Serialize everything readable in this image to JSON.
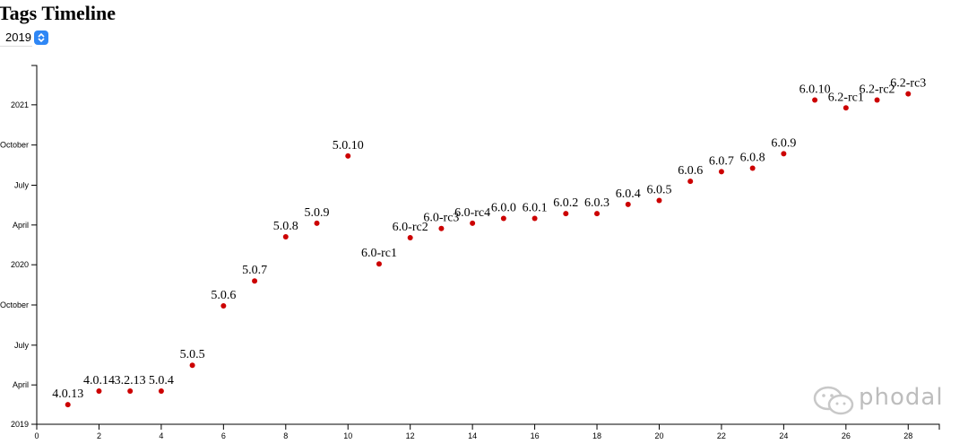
{
  "header": {
    "title": "Tags Timeline"
  },
  "year_select": {
    "value": "2019"
  },
  "watermark": {
    "text": "phodal"
  },
  "chart_data": {
    "type": "scatter",
    "title": "Tags Timeline",
    "xlim": [
      0,
      29
    ],
    "x_ticks": [
      0,
      2,
      4,
      6,
      8,
      10,
      12,
      14,
      16,
      18,
      20,
      22,
      24,
      26,
      28
    ],
    "ylim": [
      "2019-01-01",
      "2021-04-01"
    ],
    "y_ticks": [
      {
        "date": "2019-01-01",
        "label": "2019"
      },
      {
        "date": "2019-04-01",
        "label": "April"
      },
      {
        "date": "2019-07-01",
        "label": "July"
      },
      {
        "date": "2019-10-01",
        "label": "October"
      },
      {
        "date": "2020-01-01",
        "label": "2020"
      },
      {
        "date": "2020-04-01",
        "label": "April"
      },
      {
        "date": "2020-07-01",
        "label": "July"
      },
      {
        "date": "2020-10-01",
        "label": "October"
      },
      {
        "date": "2021-01-01",
        "label": "2021"
      }
    ],
    "grid": false,
    "point_color": "#cc0000",
    "points": [
      {
        "x": 1,
        "date": "2019-02-15",
        "label": "4.0.13"
      },
      {
        "x": 2,
        "date": "2019-03-18",
        "label": "4.0.14"
      },
      {
        "x": 3,
        "date": "2019-03-18",
        "label": "3.2.13"
      },
      {
        "x": 4,
        "date": "2019-03-18",
        "label": "5.0.4"
      },
      {
        "x": 5,
        "date": "2019-05-16",
        "label": "5.0.5"
      },
      {
        "x": 6,
        "date": "2019-09-29",
        "label": "5.0.6"
      },
      {
        "x": 7,
        "date": "2019-11-25",
        "label": "5.0.7"
      },
      {
        "x": 8,
        "date": "2020-03-05",
        "label": "5.0.8"
      },
      {
        "x": 9,
        "date": "2020-04-05",
        "label": "5.0.9"
      },
      {
        "x": 10,
        "date": "2020-09-06",
        "label": "5.0.10"
      },
      {
        "x": 11,
        "date": "2020-01-03",
        "label": "6.0-rc1"
      },
      {
        "x": 12,
        "date": "2020-03-03",
        "label": "6.0-rc2"
      },
      {
        "x": 13,
        "date": "2020-03-24",
        "label": "6.0-rc3"
      },
      {
        "x": 14,
        "date": "2020-04-05",
        "label": "6.0-rc4"
      },
      {
        "x": 15,
        "date": "2020-04-16",
        "label": "6.0.0"
      },
      {
        "x": 16,
        "date": "2020-04-16",
        "label": "6.0.1"
      },
      {
        "x": 17,
        "date": "2020-04-27",
        "label": "6.0.2"
      },
      {
        "x": 18,
        "date": "2020-04-27",
        "label": "6.0.3"
      },
      {
        "x": 19,
        "date": "2020-05-18",
        "label": "6.0.4"
      },
      {
        "x": 20,
        "date": "2020-05-27",
        "label": "6.0.5"
      },
      {
        "x": 21,
        "date": "2020-07-10",
        "label": "6.0.6"
      },
      {
        "x": 22,
        "date": "2020-08-01",
        "label": "6.0.7"
      },
      {
        "x": 23,
        "date": "2020-08-09",
        "label": "6.0.8"
      },
      {
        "x": 24,
        "date": "2020-09-11",
        "label": "6.0.9"
      },
      {
        "x": 25,
        "date": "2021-01-12",
        "label": "6.0.10"
      },
      {
        "x": 26,
        "date": "2020-12-25",
        "label": "6.2-rc1"
      },
      {
        "x": 27,
        "date": "2021-01-12",
        "label": "6.2-rc2"
      },
      {
        "x": 28,
        "date": "2021-01-26",
        "label": "6.2-rc3"
      }
    ]
  }
}
